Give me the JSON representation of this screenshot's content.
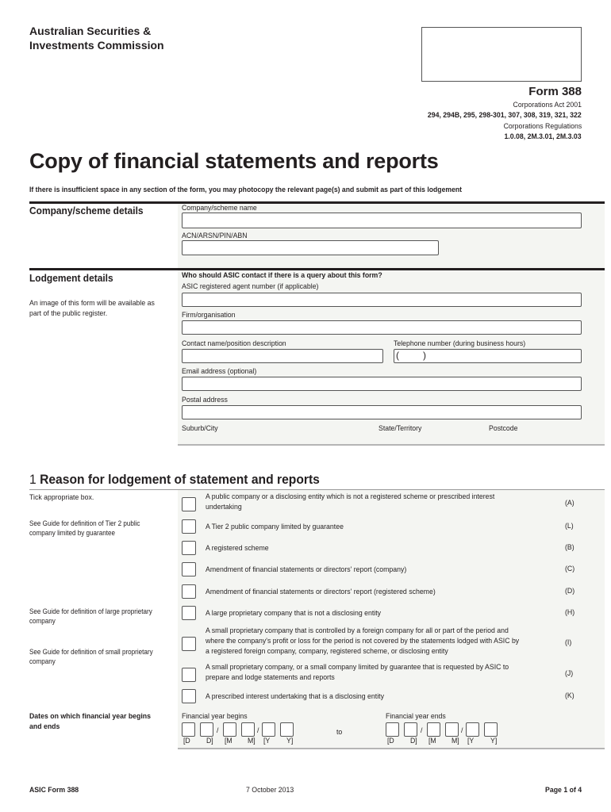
{
  "header": {
    "org_line1": "Australian Securities &",
    "org_line2": "Investments Commission",
    "form_no": "Form 388",
    "act": "Corporations Act 2001",
    "sections": "294, 294B, 295, 298-301, 307, 308, 319, 321, 322",
    "regs": "Corporations Regulations",
    "reg_nums": "1.0.08, 2M.3.01, 2M.3.03"
  },
  "title": "Copy of financial statements and reports",
  "subtitle": "If there is insufficient space in any section of the form, you may photocopy the relevant page(s) and submit as part of this lodgement",
  "company": {
    "heading": "Company/scheme details",
    "name_label": "Company/scheme name",
    "name_value": "",
    "acn_label": "ACN/ARSN/PIN/ABN",
    "acn_value": ""
  },
  "lodgement": {
    "heading": "Lodgement details",
    "note": [
      "An image of this form will be available as",
      "part of the public register."
    ],
    "question": "Who should ASIC contact if there is a query about this form?",
    "agent_label": "ASIC registered agent number (if applicable)",
    "firm_label": "Firm/organisation",
    "contact_label": "Contact name/position description",
    "phone_label": "Telephone number (during business hours)",
    "phone_open": "(",
    "phone_close": ")",
    "email_label": "Email address (optional)",
    "postal_label": "Postal address",
    "suburb_label": "Suburb/City",
    "state_label": "State/Territory",
    "postcode_label": "Postcode"
  },
  "reason": {
    "number": "1",
    "heading": "Reason for lodgement of statement and reports",
    "tick_note": "Tick appropriate box.",
    "notes": [
      [
        "See Guide for definition of Tier 2 public",
        "company limited by guarantee"
      ],
      [
        "See Guide for definition of large proprietary",
        "company"
      ],
      [
        "See Guide for definition of small proprietary",
        "company"
      ]
    ],
    "options": [
      {
        "text": [
          "A public company or a disclosing entity which is not a registered scheme or prescribed interest",
          "undertaking"
        ],
        "code": "(A)",
        "checked": false
      },
      {
        "text": [
          "A Tier 2 public company limited by guarantee"
        ],
        "code": "(L)",
        "checked": false
      },
      {
        "text": [
          "A registered scheme"
        ],
        "code": "(B)",
        "checked": false
      },
      {
        "text": [
          "Amendment of financial statements or directors' report (company)"
        ],
        "code": "(C)",
        "checked": false
      },
      {
        "text": [
          "Amendment of financial statements or directors' report (registered scheme)"
        ],
        "code": "(D)",
        "checked": false
      },
      {
        "text": [
          "A large proprietary company that is not a disclosing entity"
        ],
        "code": "(H)",
        "checked": false
      },
      {
        "text": [
          "A small proprietary company that is controlled by a foreign company for all or part of the period and",
          "where the company's profit or loss for the period is not covered by the statements lodged with  ASIC by",
          "a registered foreign company, company, registered scheme, or disclosing entity"
        ],
        "code": "(I)",
        "checked": false
      },
      {
        "text": [
          "A small proprietary company, or a small company limited by guarantee that is requested by ASIC to",
          "prepare and lodge statements and reports"
        ],
        "code": "(J)",
        "checked": false
      },
      {
        "text": [
          " A prescribed interest undertaking that is a disclosing entity"
        ],
        "code": "(K)",
        "checked": false
      }
    ]
  },
  "dates": {
    "label": [
      "Dates on which financial year begins",
      "and ends"
    ],
    "begins_label": "Financial year begins",
    "ends_label": "Financial year ends",
    "to": "to",
    "slash": "/",
    "placeholders": [
      "[D",
      "D]",
      "[M",
      "M]",
      "[Y",
      "Y]"
    ]
  },
  "footer": {
    "left": "ASIC Form 388",
    "center": "7 October 2013",
    "right": "Page 1 of 4"
  }
}
